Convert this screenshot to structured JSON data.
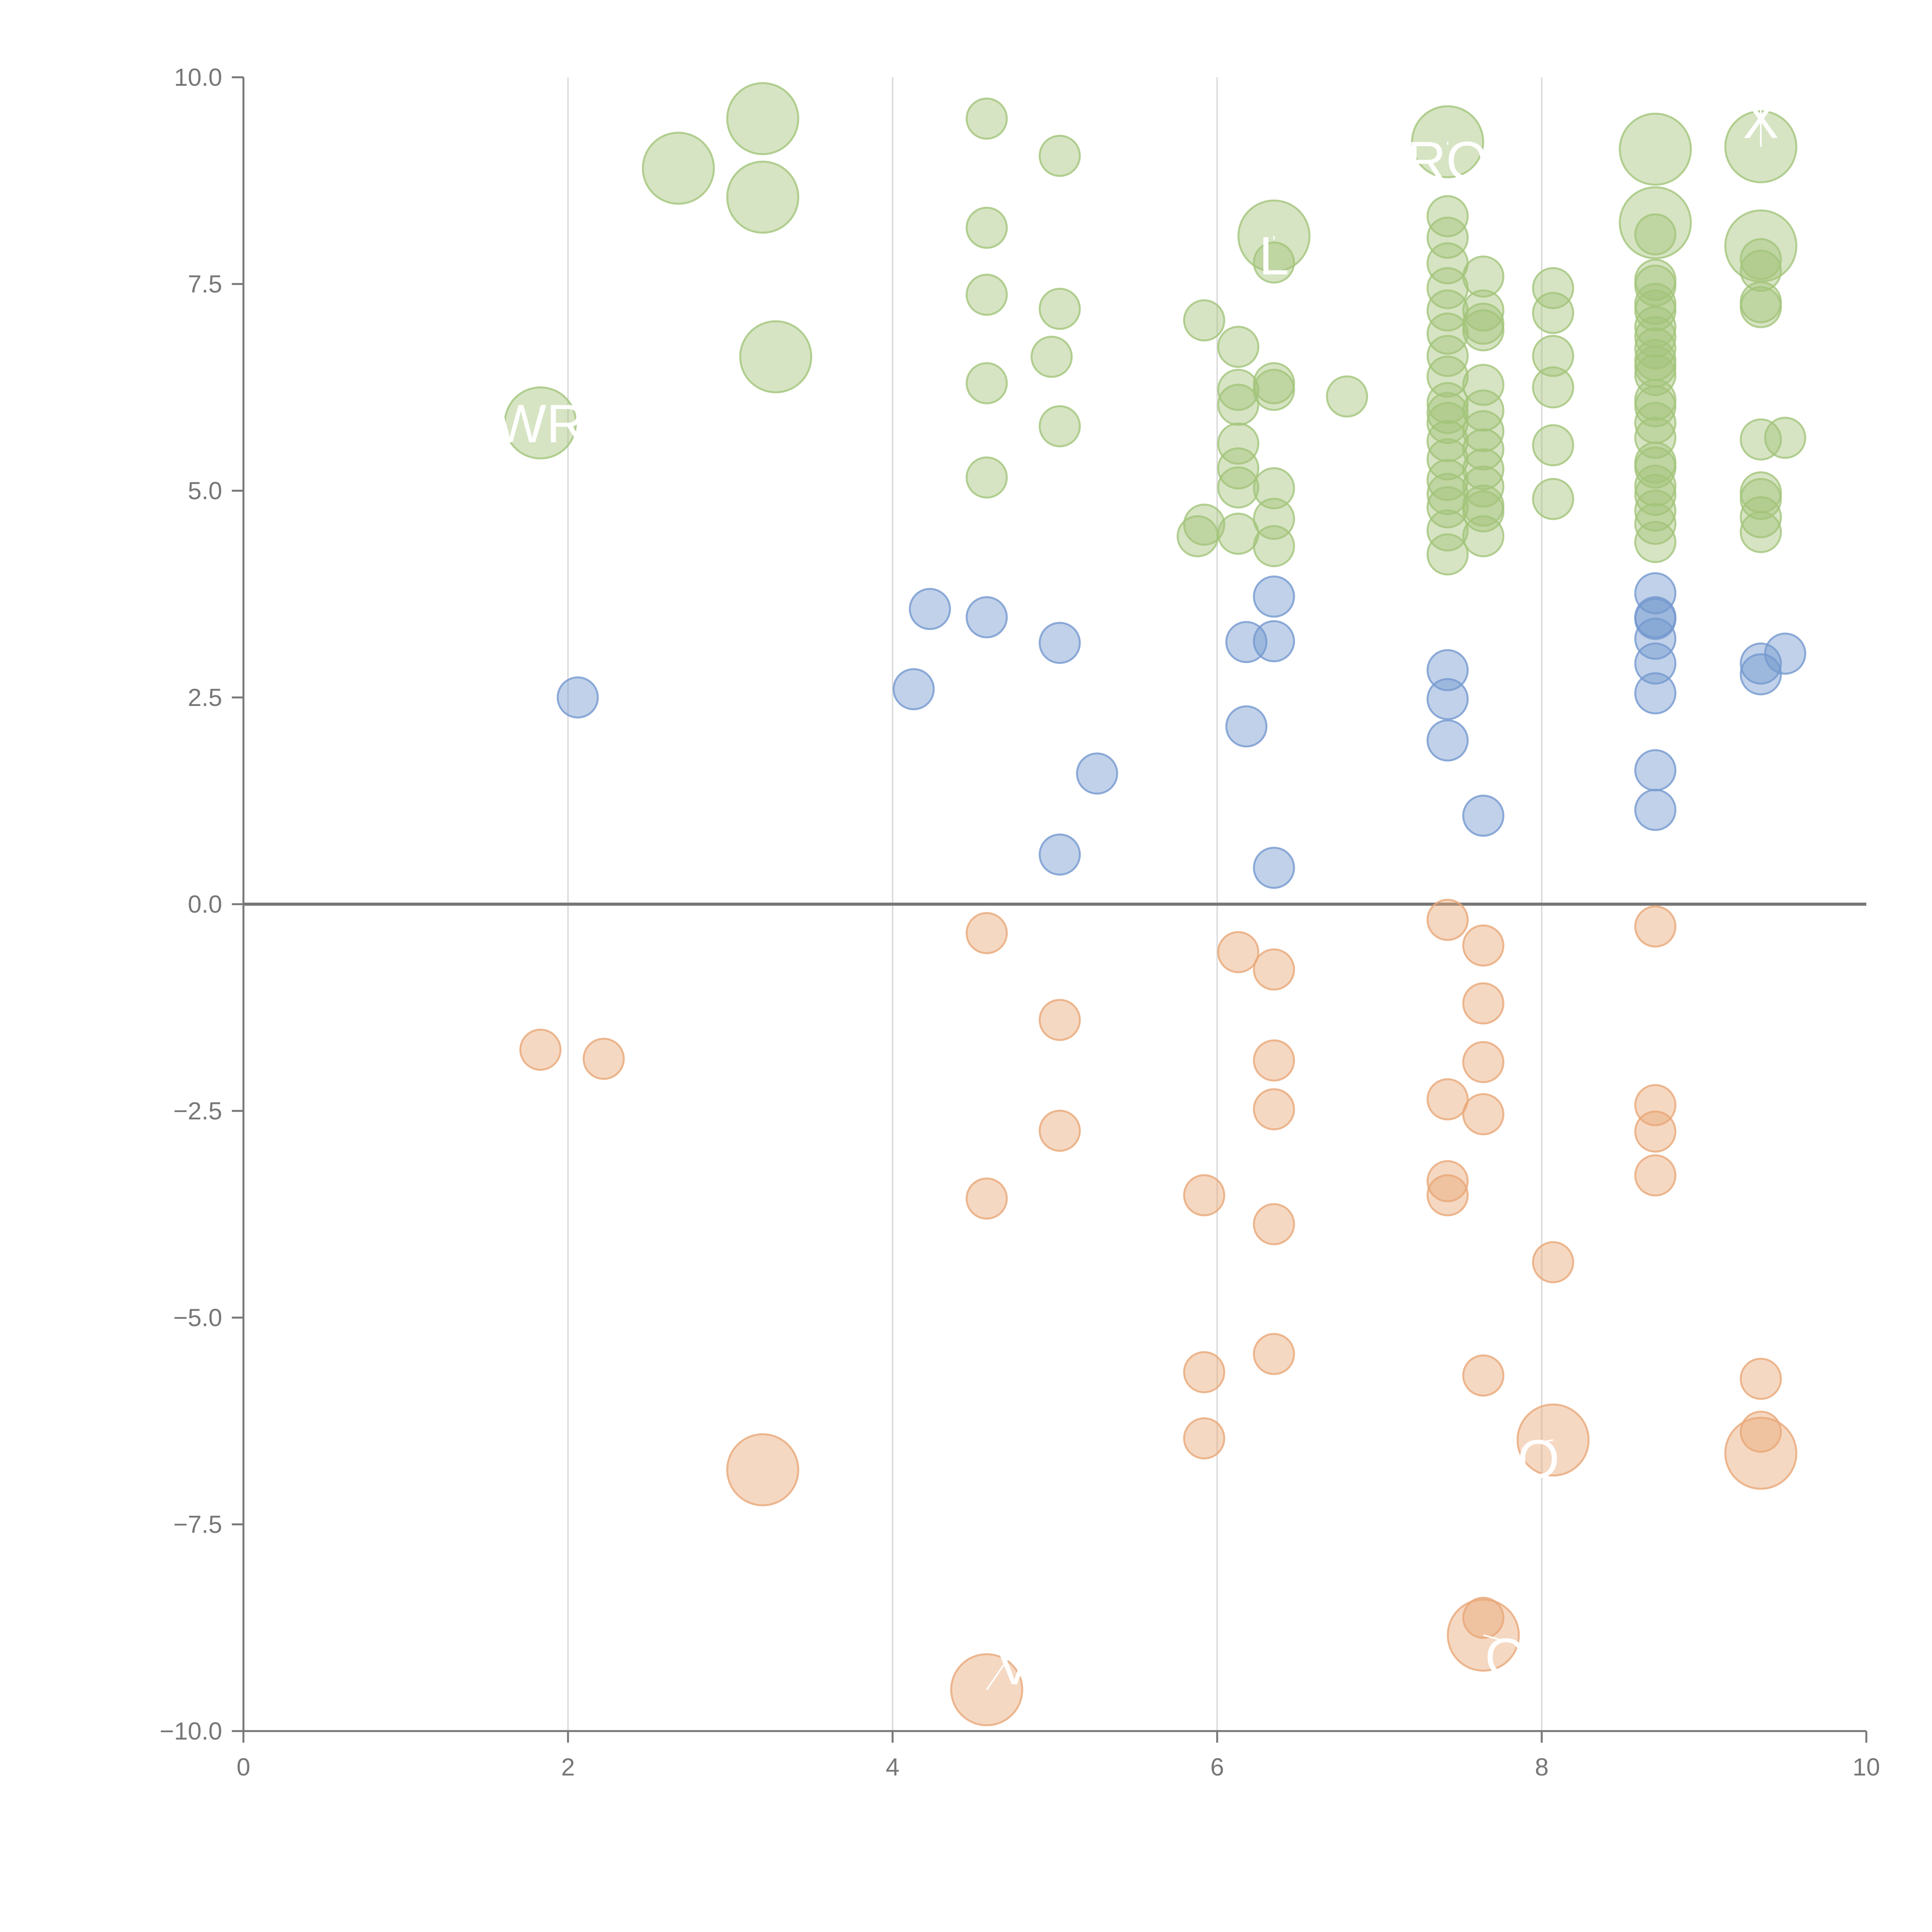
{
  "chart_data": {
    "type": "scatter",
    "subtype": "bubble",
    "title": "",
    "xlabel": "",
    "ylabel": "",
    "xlim": [
      0,
      10
    ],
    "ylim": [
      -10,
      10
    ],
    "x_ticks": [
      "0",
      "2",
      "4",
      "6",
      "8",
      "10"
    ],
    "y_ticks": [
      "10.0",
      "7.5",
      "5.0",
      "2.5",
      "0.0",
      "−2.5",
      "−5.0",
      "−7.5",
      "−10.0"
    ],
    "x_tick_values": [
      0,
      2,
      4,
      6,
      8,
      10
    ],
    "y_tick_values": [
      10,
      7.5,
      5,
      2.5,
      0,
      -2.5,
      -5,
      -7.5,
      -10
    ],
    "vertical_grid": true,
    "zero_line": true,
    "colors": {
      "high": "#a3c47a",
      "mid": "#7499cf",
      "low": "#e8a878",
      "axis": "#777777",
      "grid": "#dddddd",
      "zero_line": "#777777"
    },
    "series": [
      {
        "name": "high",
        "color": "#a3c47a",
        "points": [
          [
            3.2,
            9.5,
            3
          ],
          [
            2.68,
            8.9,
            3
          ],
          [
            3.2,
            8.55,
            3
          ],
          [
            3.28,
            6.62,
            3
          ],
          [
            1.83,
            5.82,
            3
          ],
          [
            4.58,
            9.5,
            1
          ],
          [
            5.03,
            9.05,
            1
          ],
          [
            4.58,
            8.18,
            1
          ],
          [
            4.58,
            7.37,
            1
          ],
          [
            5.03,
            7.2,
            1
          ],
          [
            4.98,
            6.62,
            1
          ],
          [
            4.58,
            6.3,
            1
          ],
          [
            5.03,
            5.78,
            1
          ],
          [
            4.58,
            5.16,
            1
          ],
          [
            5.92,
            7.06,
            1
          ],
          [
            5.92,
            4.59,
            1
          ],
          [
            5.88,
            4.45,
            1
          ],
          [
            6.13,
            6.74,
            1
          ],
          [
            6.13,
            6.22,
            1
          ],
          [
            6.13,
            6.04,
            1
          ],
          [
            6.13,
            5.57,
            1
          ],
          [
            6.13,
            5.27,
            1
          ],
          [
            6.13,
            5.04,
            1
          ],
          [
            6.13,
            4.48,
            1
          ],
          [
            6.35,
            8.08,
            3
          ],
          [
            6.35,
            7.76,
            1
          ],
          [
            6.35,
            6.3,
            1
          ],
          [
            6.35,
            6.22,
            1
          ],
          [
            6.35,
            5.03,
            1
          ],
          [
            6.35,
            4.66,
            1
          ],
          [
            6.35,
            4.33,
            1
          ],
          [
            6.8,
            6.14,
            1
          ],
          [
            7.42,
            9.22,
            3
          ],
          [
            7.42,
            8.32,
            1
          ],
          [
            7.42,
            8.06,
            1
          ],
          [
            7.42,
            7.75,
            1
          ],
          [
            7.42,
            7.45,
            1
          ],
          [
            7.42,
            7.18,
            1
          ],
          [
            7.42,
            6.9,
            1
          ],
          [
            7.42,
            6.63,
            1
          ],
          [
            7.42,
            6.38,
            1
          ],
          [
            7.42,
            6.06,
            1
          ],
          [
            7.42,
            5.94,
            1
          ],
          [
            7.42,
            5.82,
            1
          ],
          [
            7.42,
            5.6,
            1
          ],
          [
            7.42,
            5.38,
            1
          ],
          [
            7.42,
            5.13,
            1
          ],
          [
            7.42,
            4.96,
            1
          ],
          [
            7.42,
            4.8,
            1
          ],
          [
            7.42,
            4.52,
            1
          ],
          [
            7.42,
            4.23,
            1
          ],
          [
            7.64,
            7.59,
            1
          ],
          [
            7.64,
            7.18,
            1
          ],
          [
            7.64,
            7.02,
            1
          ],
          [
            7.64,
            6.94,
            1
          ],
          [
            7.64,
            6.28,
            1
          ],
          [
            7.64,
            5.97,
            1
          ],
          [
            7.64,
            5.72,
            1
          ],
          [
            7.64,
            5.5,
            1
          ],
          [
            7.64,
            5.26,
            1
          ],
          [
            7.64,
            5.05,
            1
          ],
          [
            7.64,
            4.82,
            1
          ],
          [
            7.64,
            4.75,
            1
          ],
          [
            7.64,
            4.45,
            1
          ],
          [
            8.07,
            7.45,
            1
          ],
          [
            8.07,
            7.15,
            1
          ],
          [
            8.07,
            6.63,
            1
          ],
          [
            8.07,
            6.25,
            1
          ],
          [
            8.07,
            5.55,
            1
          ],
          [
            8.07,
            4.9,
            1
          ],
          [
            8.7,
            9.13,
            3
          ],
          [
            8.7,
            8.24,
            3
          ],
          [
            8.7,
            8.1,
            1
          ],
          [
            8.7,
            7.55,
            1
          ],
          [
            8.7,
            7.48,
            1
          ],
          [
            8.7,
            7.26,
            1
          ],
          [
            8.7,
            7.18,
            1
          ],
          [
            8.7,
            6.98,
            1
          ],
          [
            8.7,
            6.86,
            1
          ],
          [
            8.7,
            6.72,
            1
          ],
          [
            8.7,
            6.58,
            1
          ],
          [
            8.7,
            6.5,
            1
          ],
          [
            8.7,
            6.4,
            1
          ],
          [
            8.7,
            6.1,
            1
          ],
          [
            8.7,
            6.02,
            1
          ],
          [
            8.7,
            5.82,
            1
          ],
          [
            8.7,
            5.64,
            1
          ],
          [
            8.7,
            5.34,
            1
          ],
          [
            8.7,
            5.28,
            1
          ],
          [
            8.7,
            5.06,
            1
          ],
          [
            8.7,
            4.95,
            1
          ],
          [
            8.7,
            4.76,
            1
          ],
          [
            8.7,
            4.6,
            1
          ],
          [
            8.7,
            4.38,
            1
          ],
          [
            9.35,
            9.16,
            3
          ],
          [
            9.35,
            7.96,
            3
          ],
          [
            9.35,
            7.8,
            1
          ],
          [
            9.35,
            7.66,
            1
          ],
          [
            9.35,
            7.28,
            1
          ],
          [
            9.35,
            7.22,
            1
          ],
          [
            9.35,
            5.62,
            1
          ],
          [
            9.35,
            4.98,
            1
          ],
          [
            9.35,
            4.9,
            1
          ],
          [
            9.35,
            4.68,
            1
          ],
          [
            9.35,
            4.5,
            1
          ],
          [
            9.5,
            5.64,
            1
          ]
        ]
      },
      {
        "name": "mid",
        "color": "#7499cf",
        "points": [
          [
            2.06,
            2.5,
            1
          ],
          [
            4.13,
            2.6,
            1
          ],
          [
            4.23,
            3.57,
            1
          ],
          [
            4.58,
            3.47,
            1
          ],
          [
            5.03,
            3.16,
            1
          ],
          [
            5.26,
            1.58,
            1
          ],
          [
            5.03,
            0.6,
            1
          ],
          [
            6.18,
            3.17,
            1
          ],
          [
            6.18,
            2.15,
            1
          ],
          [
            6.35,
            3.72,
            1
          ],
          [
            6.35,
            3.18,
            1
          ],
          [
            6.35,
            0.44,
            1
          ],
          [
            7.42,
            2.83,
            1
          ],
          [
            7.42,
            2.48,
            1
          ],
          [
            7.42,
            1.98,
            1
          ],
          [
            7.64,
            1.07,
            1
          ],
          [
            8.7,
            3.76,
            1
          ],
          [
            8.7,
            3.47,
            1
          ],
          [
            8.7,
            3.45,
            1
          ],
          [
            8.7,
            3.21,
            1
          ],
          [
            8.7,
            2.91,
            1
          ],
          [
            8.7,
            2.55,
            1
          ],
          [
            8.7,
            1.62,
            1
          ],
          [
            8.7,
            1.14,
            1
          ],
          [
            9.35,
            2.91,
            1
          ],
          [
            9.35,
            2.78,
            1
          ],
          [
            9.5,
            3.03,
            1
          ]
        ]
      },
      {
        "name": "low",
        "color": "#e8a878",
        "points": [
          [
            1.83,
            -1.76,
            1
          ],
          [
            2.22,
            -1.87,
            1
          ],
          [
            3.2,
            -6.84,
            3
          ],
          [
            4.58,
            -0.35,
            1
          ],
          [
            4.58,
            -3.56,
            1
          ],
          [
            4.58,
            -9.5,
            3
          ],
          [
            5.03,
            -1.4,
            1
          ],
          [
            5.03,
            -2.74,
            1
          ],
          [
            5.92,
            -3.52,
            1
          ],
          [
            5.92,
            -5.66,
            1
          ],
          [
            5.92,
            -6.46,
            1
          ],
          [
            6.13,
            -0.58,
            1
          ],
          [
            6.35,
            -0.79,
            1
          ],
          [
            6.35,
            -1.89,
            1
          ],
          [
            6.35,
            -2.48,
            1
          ],
          [
            6.35,
            -3.87,
            1
          ],
          [
            6.35,
            -5.44,
            1
          ],
          [
            7.42,
            -0.19,
            1
          ],
          [
            7.42,
            -2.36,
            1
          ],
          [
            7.42,
            -3.35,
            1
          ],
          [
            7.42,
            -3.52,
            1
          ],
          [
            7.64,
            -0.5,
            1
          ],
          [
            7.64,
            -1.2,
            1
          ],
          [
            7.64,
            -1.91,
            1
          ],
          [
            7.64,
            -2.54,
            1
          ],
          [
            7.64,
            -5.7,
            1
          ],
          [
            7.64,
            -8.84,
            3
          ],
          [
            7.64,
            -8.63,
            1
          ],
          [
            8.07,
            -4.33,
            1
          ],
          [
            8.07,
            -6.48,
            3
          ],
          [
            8.7,
            -0.27,
            1
          ],
          [
            8.7,
            -2.43,
            1
          ],
          [
            8.7,
            -2.75,
            1
          ],
          [
            8.7,
            -3.28,
            1
          ],
          [
            9.35,
            -5.74,
            1
          ],
          [
            9.35,
            -6.38,
            1
          ],
          [
            9.35,
            -6.64,
            3
          ]
        ]
      }
    ],
    "annotations": [
      {
        "text": "WR",
        "x": 1.83,
        "y": 5.82,
        "tx": 1.83,
        "ty": 5.82
      },
      {
        "text": "RO",
        "x": 7.42,
        "y": 9.22,
        "tx": 7.42,
        "ty": 9.0
      },
      {
        "text": "L",
        "x": 6.35,
        "y": 8.08,
        "tx": 6.35,
        "ty": 7.85
      },
      {
        "text": "X",
        "x": 9.35,
        "y": 9.16,
        "tx": 9.35,
        "ty": 9.5
      },
      {
        "text": "O",
        "x": 8.07,
        "y": -6.48,
        "tx": 7.98,
        "ty": -6.7
      },
      {
        "text": "O",
        "x": 7.64,
        "y": -8.84,
        "tx": 7.78,
        "ty": -9.1
      },
      {
        "text": "V",
        "x": 4.58,
        "y": -9.5,
        "tx": 4.75,
        "ty": -9.2
      }
    ]
  }
}
